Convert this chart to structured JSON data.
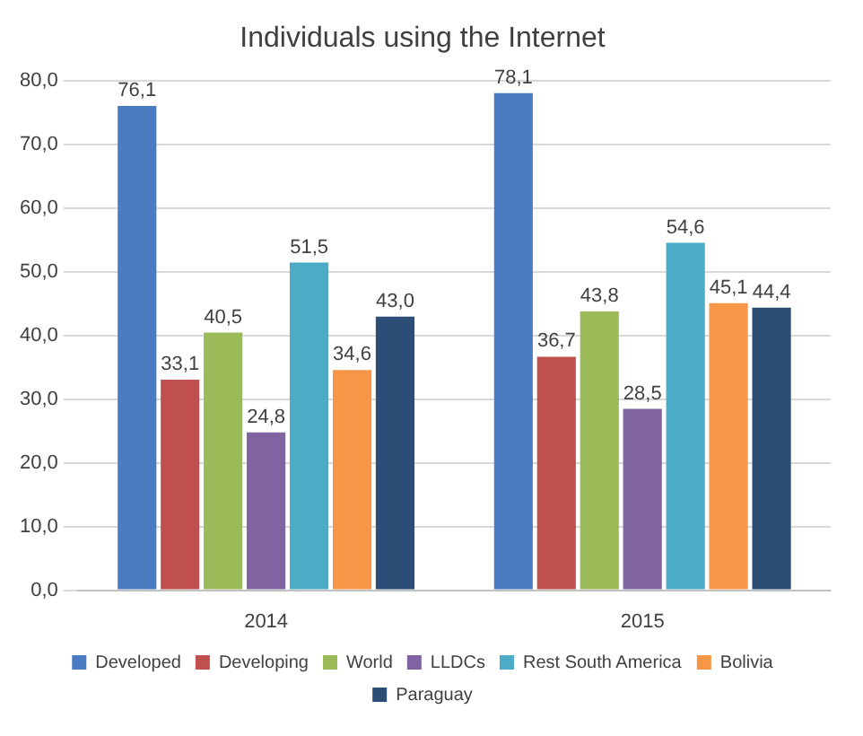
{
  "chart_data": {
    "type": "bar",
    "title": "Individuals using the Internet",
    "categories": [
      "2014",
      "2015"
    ],
    "series": [
      {
        "name": "Developed",
        "color": "#4a7cc2",
        "values": [
          76.1,
          78.1
        ],
        "value_labels": [
          "76,1",
          "78,1"
        ]
      },
      {
        "name": "Developing",
        "color": "#c0504d",
        "values": [
          33.1,
          36.7
        ],
        "value_labels": [
          "33,1",
          "36,7"
        ]
      },
      {
        "name": "World",
        "color": "#9bbb59",
        "values": [
          40.5,
          43.8
        ],
        "value_labels": [
          "40,5",
          "43,8"
        ]
      },
      {
        "name": "LLDCs",
        "color": "#8064a2",
        "values": [
          24.8,
          28.5
        ],
        "value_labels": [
          "24,8",
          "28,5"
        ]
      },
      {
        "name": "Rest South America",
        "color": "#4bacc6",
        "values": [
          51.5,
          54.6
        ],
        "value_labels": [
          "51,5",
          "54,6"
        ]
      },
      {
        "name": "Bolivia",
        "color": "#f79646",
        "values": [
          34.6,
          45.1
        ],
        "value_labels": [
          "34,6",
          "45,1"
        ]
      },
      {
        "name": "Paraguay",
        "color": "#2c4d75",
        "values": [
          43.0,
          44.4
        ],
        "value_labels": [
          "43,0",
          "44,4"
        ]
      }
    ],
    "ylim": [
      0,
      80
    ],
    "yticks": [
      {
        "value": 0,
        "label": "0,0"
      },
      {
        "value": 10,
        "label": "10,0"
      },
      {
        "value": 20,
        "label": "20,0"
      },
      {
        "value": 30,
        "label": "30,0"
      },
      {
        "value": 40,
        "label": "40,0"
      },
      {
        "value": 50,
        "label": "50,0"
      },
      {
        "value": 60,
        "label": "60,0"
      },
      {
        "value": 70,
        "label": "70,0"
      },
      {
        "value": 80,
        "label": "80,0"
      }
    ],
    "grid": "y",
    "legend": "bottom"
  }
}
